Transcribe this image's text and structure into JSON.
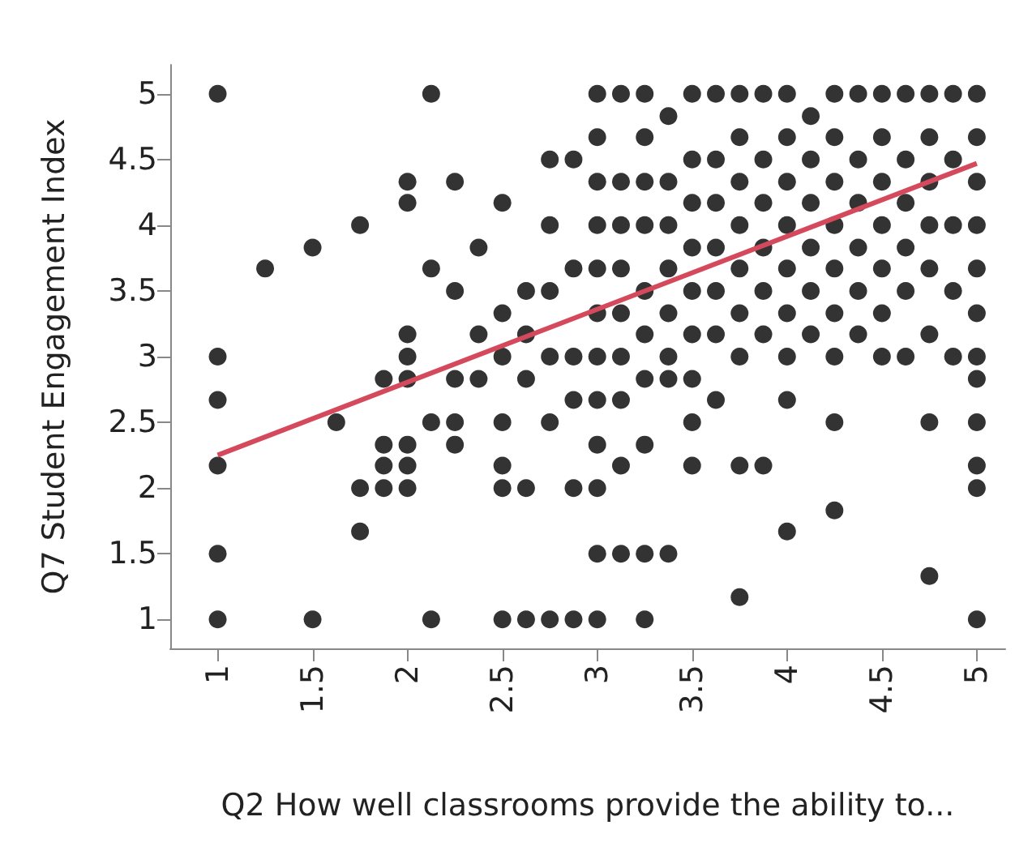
{
  "chart_data": {
    "type": "scatter",
    "xlabel": "Q2 How well classrooms provide the ability to...",
    "ylabel": "Q7 Student Engagement Index",
    "xlim": [
      0.75,
      5.15
    ],
    "xticks": [
      1,
      1.5,
      2,
      2.5,
      3,
      3.5,
      4,
      4.5,
      5
    ],
    "ylim": [
      0.78,
      5.22
    ],
    "yticks": [
      1,
      1.5,
      2,
      2.5,
      3,
      3.5,
      4,
      4.5,
      5
    ],
    "grid": false,
    "series": [
      {
        "color": "#000000",
        "marker": "circle",
        "x": [
          1,
          1,
          1,
          1,
          1,
          1,
          1.25,
          1.5,
          1.5,
          1.625,
          1.75,
          1.75,
          1.75,
          1.875,
          1.875,
          1.875,
          1.875,
          2,
          2,
          2,
          2,
          2,
          2,
          2,
          2,
          2.125,
          2.125,
          2.125,
          2.125,
          2.25,
          2.25,
          2.25,
          2.25,
          2.25,
          2.375,
          2.375,
          2.375,
          2.5,
          2.5,
          2.5,
          2.5,
          2.5,
          2.5,
          2.5,
          2.625,
          2.625,
          2.625,
          2.625,
          2.625,
          2.75,
          2.75,
          2.75,
          2.75,
          2.75,
          2.75,
          2.875,
          2.875,
          2.875,
          2.875,
          2.875,
          2.875,
          3,
          3,
          3,
          3,
          3,
          3,
          3,
          3,
          3,
          3,
          3,
          3,
          3.125,
          3.125,
          3.125,
          3.125,
          3.125,
          3.125,
          3.125,
          3.125,
          3.125,
          3.25,
          3.25,
          3.25,
          3.25,
          3.25,
          3.25,
          3.25,
          3.25,
          3.25,
          3.25,
          3.375,
          3.375,
          3.375,
          3.375,
          3.375,
          3.375,
          3.375,
          3.375,
          3.5,
          3.5,
          3.5,
          3.5,
          3.5,
          3.5,
          3.5,
          3.5,
          3.5,
          3.625,
          3.625,
          3.625,
          3.625,
          3.625,
          3.625,
          3.625,
          3.75,
          3.75,
          3.75,
          3.75,
          3.75,
          3.75,
          3.75,
          3.75,
          3.75,
          3.875,
          3.875,
          3.875,
          3.875,
          3.875,
          3.875,
          3.875,
          4,
          4,
          4,
          4,
          4,
          4,
          4,
          4,
          4,
          4.125,
          4.125,
          4.125,
          4.125,
          4.125,
          4.125,
          4.25,
          4.25,
          4.25,
          4.25,
          4.25,
          4.25,
          4.25,
          4.25,
          4.25,
          4.375,
          4.375,
          4.375,
          4.375,
          4.375,
          4.375,
          4.5,
          4.5,
          4.5,
          4.5,
          4.5,
          4.5,
          4.5,
          4.625,
          4.625,
          4.625,
          4.625,
          4.625,
          4.625,
          4.75,
          4.75,
          4.75,
          4.75,
          4.75,
          4.75,
          4.75,
          4.75,
          4.875,
          4.875,
          4.875,
          4.875,
          4.875,
          5,
          5,
          5,
          5,
          5,
          5,
          5,
          5,
          5,
          5,
          5,
          5
        ],
        "values": [
          5,
          3,
          2.67,
          2.17,
          1.5,
          1,
          3.67,
          3.83,
          1,
          2.5,
          4,
          2,
          1.67,
          2.83,
          2.33,
          2.17,
          2,
          4.33,
          4.17,
          3.17,
          3,
          2.83,
          2.33,
          2.17,
          2,
          5,
          3.67,
          2.5,
          1,
          4.33,
          3.5,
          2.83,
          2.5,
          2.33,
          3.83,
          3.17,
          2.83,
          4.17,
          3.33,
          3,
          2.5,
          2.17,
          2,
          1,
          3.5,
          3.17,
          2.83,
          2,
          1,
          4.5,
          4,
          3.5,
          3,
          2.5,
          1,
          4.5,
          3.67,
          3,
          2.67,
          2,
          1,
          5,
          4.67,
          4.33,
          4,
          3.67,
          3.33,
          3,
          2.67,
          2.33,
          2,
          1.5,
          1,
          5,
          4.33,
          4,
          3.67,
          3.33,
          3,
          2.67,
          2.17,
          1.5,
          5,
          4.67,
          4.33,
          4,
          3.5,
          3.17,
          2.83,
          2.33,
          1.5,
          1,
          4.83,
          4.33,
          4,
          3.67,
          3.33,
          3,
          2.83,
          1.5,
          5,
          4.5,
          4.17,
          3.83,
          3.5,
          3.17,
          2.83,
          2.5,
          2.17,
          5,
          4.5,
          4.17,
          3.83,
          3.5,
          3.17,
          2.67,
          5,
          4.67,
          4.33,
          4,
          3.67,
          3.33,
          3,
          2.17,
          1.17,
          5,
          4.5,
          4.17,
          3.83,
          3.5,
          3.17,
          2.17,
          5,
          4.67,
          4.33,
          4,
          3.67,
          3.33,
          3,
          2.67,
          1.67,
          4.83,
          4.5,
          4.17,
          3.83,
          3.5,
          3.17,
          5,
          4.67,
          4.33,
          4,
          3.67,
          3.33,
          3,
          2.5,
          1.83,
          5,
          4.5,
          4.17,
          3.83,
          3.5,
          3.17,
          5,
          4.67,
          4.33,
          4,
          3.67,
          3.33,
          3,
          5,
          4.5,
          4.17,
          3.83,
          3.5,
          3,
          5,
          4.67,
          4.33,
          4,
          3.67,
          3.17,
          2.5,
          1.33,
          5,
          4.5,
          4,
          3.5,
          3,
          5,
          4.67,
          4.33,
          4,
          3.67,
          3.33,
          3,
          2.83,
          2.5,
          2.17,
          2,
          1
        ]
      },
      {
        "type": "line",
        "marker": "none",
        "color": "#d44a5c",
        "x": [
          1,
          5
        ],
        "values": [
          2.25,
          4.47
        ]
      }
    ]
  }
}
